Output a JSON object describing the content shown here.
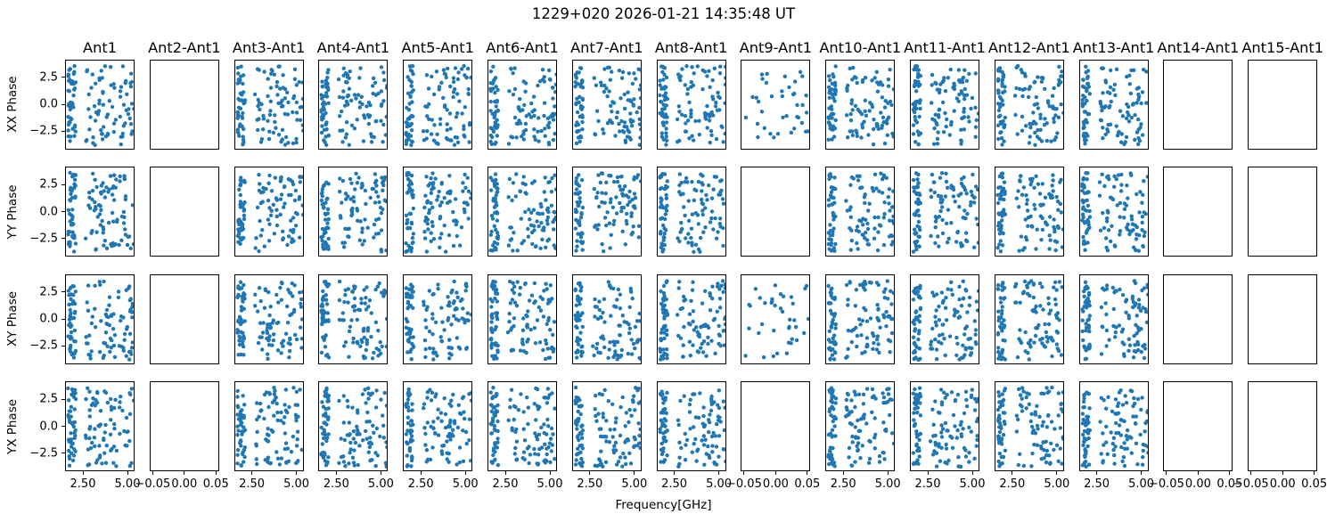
{
  "chart_data": {
    "type": "scatter",
    "title": "1229+020 2026-01-21 14:35:48 UT",
    "xlabel": "Frequency[GHz]",
    "row_labels": [
      "XX Phase",
      "YY Phase",
      "XY Phase",
      "YX Phase"
    ],
    "columns": [
      {
        "title": "Ant1",
        "rows": [
          "full",
          "full",
          "full",
          "full"
        ]
      },
      {
        "title": "Ant2-Ant1",
        "rows": [
          "empty",
          "empty",
          "empty",
          "empty"
        ]
      },
      {
        "title": "Ant3-Ant1",
        "rows": [
          "full",
          "full",
          "full",
          "full"
        ]
      },
      {
        "title": "Ant4-Ant1",
        "rows": [
          "full",
          "full",
          "full",
          "full"
        ]
      },
      {
        "title": "Ant5-Ant1",
        "rows": [
          "full",
          "full",
          "full",
          "full"
        ]
      },
      {
        "title": "Ant6-Ant1",
        "rows": [
          "full",
          "full",
          "full",
          "full"
        ]
      },
      {
        "title": "Ant7-Ant1",
        "rows": [
          "full",
          "full",
          "full",
          "full"
        ]
      },
      {
        "title": "Ant8-Ant1",
        "rows": [
          "full",
          "full",
          "full",
          "full"
        ]
      },
      {
        "title": "Ant9-Ant1",
        "rows": [
          "sparse",
          "empty",
          "sparse",
          "empty"
        ]
      },
      {
        "title": "Ant10-Ant1",
        "rows": [
          "full",
          "full",
          "full",
          "full"
        ]
      },
      {
        "title": "Ant11-Ant1",
        "rows": [
          "full",
          "full",
          "full",
          "full"
        ]
      },
      {
        "title": "Ant12-Ant1",
        "rows": [
          "full",
          "full",
          "full",
          "full"
        ]
      },
      {
        "title": "Ant13-Ant1",
        "rows": [
          "full",
          "full",
          "full",
          "full"
        ]
      },
      {
        "title": "Ant14-Ant1",
        "rows": [
          "empty",
          "empty",
          "empty",
          "empty"
        ]
      },
      {
        "title": "Ant15-Ant1",
        "rows": [
          "empty",
          "empty",
          "empty",
          "empty"
        ]
      }
    ],
    "marker_color": "#1f77b4",
    "axes": {
      "data_xlim": [
        1.5,
        5.4
      ],
      "data_xticks": [
        2.5,
        5.0
      ],
      "data_xtick_labels": [
        "2.50",
        "5.00"
      ],
      "empty_xlim": [
        -0.055,
        0.055
      ],
      "empty_xticks": [
        -0.05,
        0.0,
        0.05
      ],
      "empty_xtick_labels": [
        "−0.05",
        "0.00",
        "0.05"
      ],
      "ylim": [
        -4.2,
        4.2
      ],
      "yticks": [
        2.5,
        0.0,
        -2.5
      ],
      "ytick_labels": [
        "2.5",
        "0.0",
        "−2.5"
      ]
    },
    "point_model": {
      "full": {
        "strip_x_range_ghz": [
          1.62,
          2.05
        ],
        "strip_n": 46,
        "scatter_x_range_ghz": [
          2.6,
          5.32
        ],
        "scatter_n": 80,
        "phase_range_rad": [
          -3.7,
          3.7
        ]
      },
      "sparse": {
        "x_range_ghz": [
          1.68,
          5.28
        ],
        "n": 38,
        "phase_range_rad": [
          -3.5,
          3.5
        ]
      }
    },
    "grid": {
      "rows": 4,
      "cols": 15,
      "legend": false,
      "gridlines": false
    }
  }
}
